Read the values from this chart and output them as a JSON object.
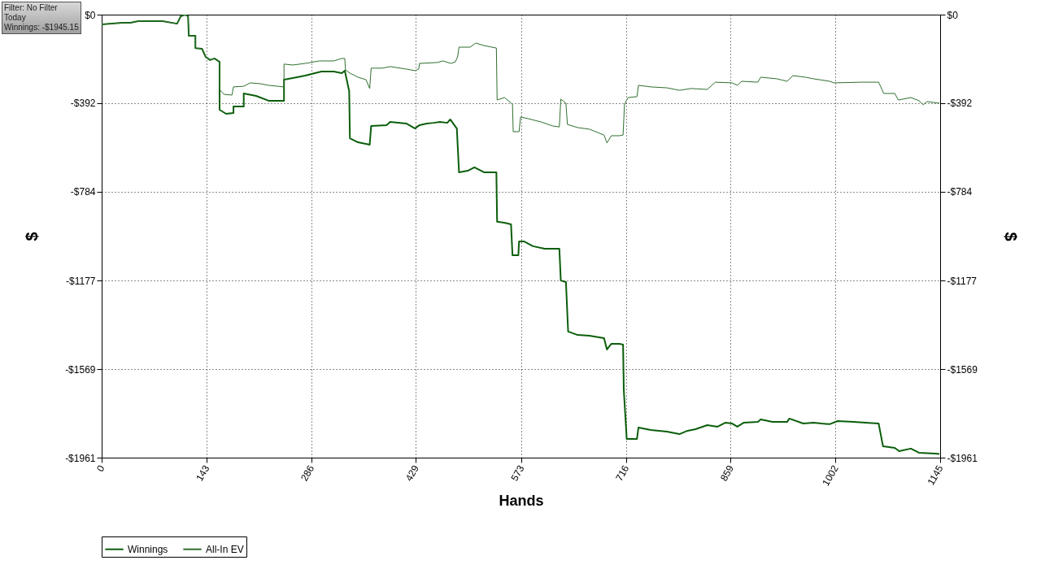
{
  "chart_data": {
    "type": "line",
    "xlabel": "Hands",
    "ylabel": "$",
    "y2label": "$",
    "annotations": [
      "Filter: No Filter",
      "Today",
      "Winnings: -$1945.15"
    ],
    "xlim": [
      0,
      1145
    ],
    "xticks": [
      0,
      143,
      286,
      429,
      573,
      716,
      859,
      1002,
      1145
    ],
    "ylim": [
      -1961,
      0
    ],
    "yticks": [
      {
        "value": 0,
        "label": "$0"
      },
      {
        "value": -392,
        "label": "-$392"
      },
      {
        "value": -784,
        "label": "-$784"
      },
      {
        "value": -1177,
        "label": "-$1177"
      },
      {
        "value": -1569,
        "label": "-$1569"
      },
      {
        "value": -1961,
        "label": "-$1961"
      }
    ],
    "y2lim": [
      -1961,
      0
    ],
    "y2ticks": [
      {
        "value": 0,
        "label": "$0"
      },
      {
        "value": -392,
        "label": "-$392"
      },
      {
        "value": -784,
        "label": "-$784"
      },
      {
        "value": -1177,
        "label": "-$1177"
      },
      {
        "value": -1569,
        "label": "-$1569"
      },
      {
        "value": -1961,
        "label": "-$1961"
      }
    ],
    "grid": true,
    "legend": "bottom left",
    "line_style": "solid",
    "marker": "none",
    "series": [
      {
        "name": "Winnings",
        "color": "#0b5e0b",
        "x": [
          0,
          28,
          39,
          50,
          83,
          103,
          108,
          114,
          118,
          119,
          128,
          128,
          137,
          142,
          148,
          154,
          161,
          161,
          170,
          180,
          180,
          194,
          194,
          211,
          228,
          249,
          249,
          261,
          278,
          300,
          317,
          328,
          332,
          338,
          339,
          350,
          366,
          368,
          389,
          394,
          416,
          428,
          434,
          444,
          453,
          462,
          472,
          476,
          485,
          488,
          500,
          509,
          522,
          539,
          540,
          550,
          559,
          561,
          569,
          570,
          577,
          589,
          605,
          625,
          627,
          634,
          637,
          650,
          666,
          686,
          690,
          696,
          707,
          712,
          713,
          717,
          731,
          733,
          750,
          772,
          789,
          800,
          811,
          827,
          841,
          852,
          861,
          868,
          877,
          896,
          900,
          916,
          936,
          939,
          958,
          972,
          983,
          994,
          1005,
          1027,
          1043,
          1061,
          1067,
          1083,
          1089,
          1105,
          1116,
          1138,
          1144
        ],
        "values": [
          -43,
          -36,
          -36,
          -29,
          -29,
          -40,
          -7,
          0,
          -7,
          -94,
          -94,
          -148,
          -151,
          -187,
          -201,
          -194,
          -209,
          -421,
          -439,
          -435,
          -407,
          -407,
          -349,
          -360,
          -381,
          -381,
          -288,
          -281,
          -270,
          -252,
          -252,
          -259,
          -248,
          -338,
          -547,
          -565,
          -576,
          -493,
          -489,
          -475,
          -482,
          -504,
          -489,
          -482,
          -479,
          -475,
          -479,
          -464,
          -504,
          -698,
          -691,
          -676,
          -698,
          -698,
          -917,
          -921,
          -928,
          -1065,
          -1065,
          -1004,
          -1004,
          -1025,
          -1036,
          -1036,
          -1177,
          -1184,
          -1403,
          -1418,
          -1421,
          -1432,
          -1482,
          -1457,
          -1457,
          -1461,
          -1662,
          -1878,
          -1878,
          -1828,
          -1839,
          -1846,
          -1857,
          -1842,
          -1835,
          -1817,
          -1824,
          -1806,
          -1810,
          -1824,
          -1806,
          -1803,
          -1792,
          -1803,
          -1803,
          -1788,
          -1810,
          -1806,
          -1810,
          -1813,
          -1799,
          -1803,
          -1806,
          -1810,
          -1911,
          -1918,
          -1932,
          -1921,
          -1939,
          -1943,
          -1945
        ]
      },
      {
        "name": "All-In EV",
        "color": "#2f6f2f",
        "x": [
          0,
          28,
          39,
          50,
          83,
          103,
          108,
          114,
          118,
          119,
          128,
          128,
          137,
          142,
          148,
          154,
          161,
          161,
          167,
          178,
          180,
          194,
          203,
          217,
          228,
          249,
          249,
          261,
          278,
          297,
          317,
          328,
          332,
          333,
          339,
          350,
          361,
          366,
          368,
          383,
          394,
          416,
          428,
          433,
          434,
          458,
          466,
          477,
          483,
          486,
          488,
          503,
          511,
          522,
          539,
          540,
          550,
          561,
          562,
          570,
          572,
          583,
          600,
          616,
          625,
          627,
          634,
          636,
          650,
          666,
          686,
          690,
          696,
          707,
          712,
          714,
          719,
          731,
          733,
          750,
          772,
          789,
          805,
          827,
          838,
          861,
          868,
          874,
          896,
          900,
          922,
          936,
          944,
          961,
          972,
          994,
          1000,
          1038,
          1061,
          1068,
          1083,
          1088,
          1105,
          1116,
          1122,
          1127,
          1144
        ],
        "values": [
          -43,
          -36,
          -36,
          -29,
          -29,
          -40,
          -7,
          0,
          -7,
          -94,
          -94,
          -148,
          -151,
          -187,
          -201,
          -194,
          -209,
          -331,
          -353,
          -356,
          -320,
          -317,
          -302,
          -306,
          -313,
          -320,
          -219,
          -223,
          -216,
          -205,
          -205,
          -194,
          -194,
          -245,
          -259,
          -277,
          -288,
          -327,
          -237,
          -237,
          -230,
          -241,
          -248,
          -241,
          -216,
          -212,
          -205,
          -216,
          -209,
          -187,
          -144,
          -144,
          -126,
          -137,
          -148,
          -378,
          -367,
          -396,
          -518,
          -518,
          -453,
          -461,
          -475,
          -493,
          -497,
          -374,
          -392,
          -486,
          -500,
          -507,
          -533,
          -568,
          -536,
          -536,
          -533,
          -396,
          -367,
          -363,
          -313,
          -320,
          -324,
          -335,
          -327,
          -331,
          -299,
          -302,
          -313,
          -295,
          -299,
          -277,
          -284,
          -295,
          -270,
          -277,
          -284,
          -295,
          -302,
          -299,
          -299,
          -349,
          -349,
          -378,
          -367,
          -381,
          -399,
          -385,
          -392
        ]
      }
    ]
  }
}
